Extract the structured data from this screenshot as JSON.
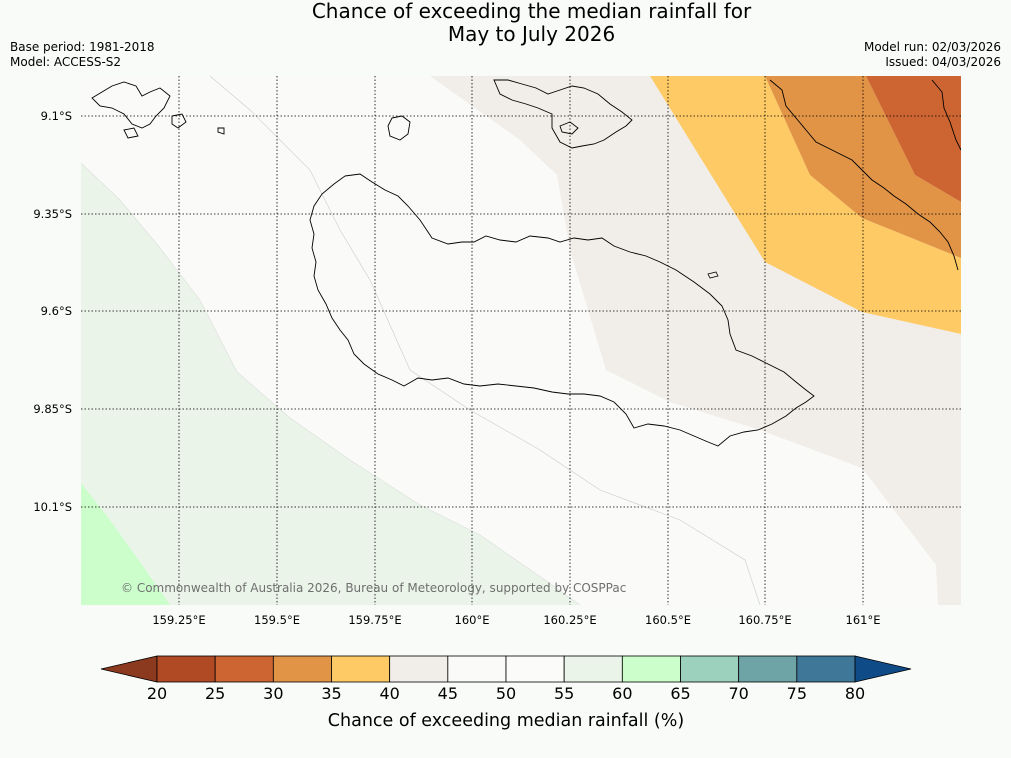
{
  "title": {
    "line1": "Chance of exceeding the median rainfall for",
    "line2": "May to July 2026"
  },
  "meta": {
    "base_period": "Base period: 1981-2018",
    "model": "Model: ACCESS-S2",
    "model_run": "Model run: 02/03/2026",
    "issued": "Issued: 04/03/2026"
  },
  "map": {
    "lat_labels": [
      "9.1°S",
      "9.35°S",
      "9.6°S",
      "9.85°S",
      "10.1°S"
    ],
    "lon_labels": [
      "159.25°E",
      "159.5°E",
      "159.75°E",
      "160°E",
      "160.25°E",
      "160.5°E",
      "160.75°E",
      "161°E"
    ],
    "copyright": "© Commonwealth of Australia 2026, Bureau of Meteorology, supported by COSPPac"
  },
  "colorbar": {
    "ticks": [
      "20",
      "25",
      "30",
      "35",
      "40",
      "45",
      "50",
      "55",
      "60",
      "65",
      "70",
      "75",
      "80"
    ],
    "colors": [
      "#8c3a1f",
      "#b04a25",
      "#cd6532",
      "#e19446",
      "#fdca65",
      "#f1ede8",
      "#fafbf9",
      "#fbfcfa",
      "#eaf4e8",
      "#cbfecb",
      "#9cd1be",
      "#6fa4a7",
      "#3f7798",
      "#0f4b86"
    ],
    "label": "Chance of exceeding median rainfall (%)"
  }
}
